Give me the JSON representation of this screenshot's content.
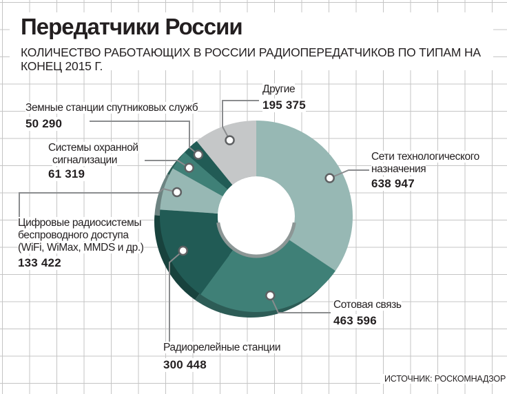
{
  "title": "Передатчики России",
  "subtitle": "КОЛИЧЕСТВО РАБОТАЮЩИХ В РОССИИ РАДИОПЕРЕДАТЧИКОВ ПО ТИПАМ НА КОНЕЦ 2015 Г.",
  "source": "ИСТОЧНИК: РОСКОМНАДЗОР",
  "colors": {
    "tech": "#97b8b4",
    "cellular": "#3f8077",
    "radiorelay": "#215b55",
    "digital_wireless": "#97b8b4",
    "security": "#3f8077",
    "satellite": "#215b55",
    "other": "#c5c7c8"
  },
  "chart_data": {
    "type": "pie",
    "title": "Передатчики России",
    "subtitle": "КОЛИЧЕСТВО РАБОТАЮЩИХ В РОССИИ РАДИОПЕРЕДАТЧИКОВ ПО ТИПАМ НА КОНЕЦ 2015 Г.",
    "donut": true,
    "categories": [
      "Сети технологического назначения",
      "Сотовая связь",
      "Радиорелейные станции",
      "Цифровые радиосистемы беспроводного доступа (WiFi, WiMax, MMDS и др.)",
      "Системы охранной сигнализации",
      "Земные станции спутниковых служб",
      "Другие"
    ],
    "values": [
      638947,
      463596,
      300448,
      133422,
      61319,
      50290,
      195375
    ],
    "value_labels": [
      "638 947",
      "463 596",
      "300 448",
      "133 422",
      "61 319",
      "50 290",
      "195 375"
    ]
  },
  "labels": {
    "tech_l1": "Сети технологического",
    "tech_l2": "назначения",
    "cellular": "Сотовая связь",
    "radiorelay": "Радиорелейные станции",
    "digital_l1": "Цифровые радиосистемы",
    "digital_l2": "беспроводного доступа",
    "digital_l3": "(WiFi, WiMax, MMDS и др.)",
    "security_l1": "Системы охранной",
    "security_l2": "сигнализации",
    "satellite": "Земные станции спутниковых служб",
    "other": "Другие"
  }
}
